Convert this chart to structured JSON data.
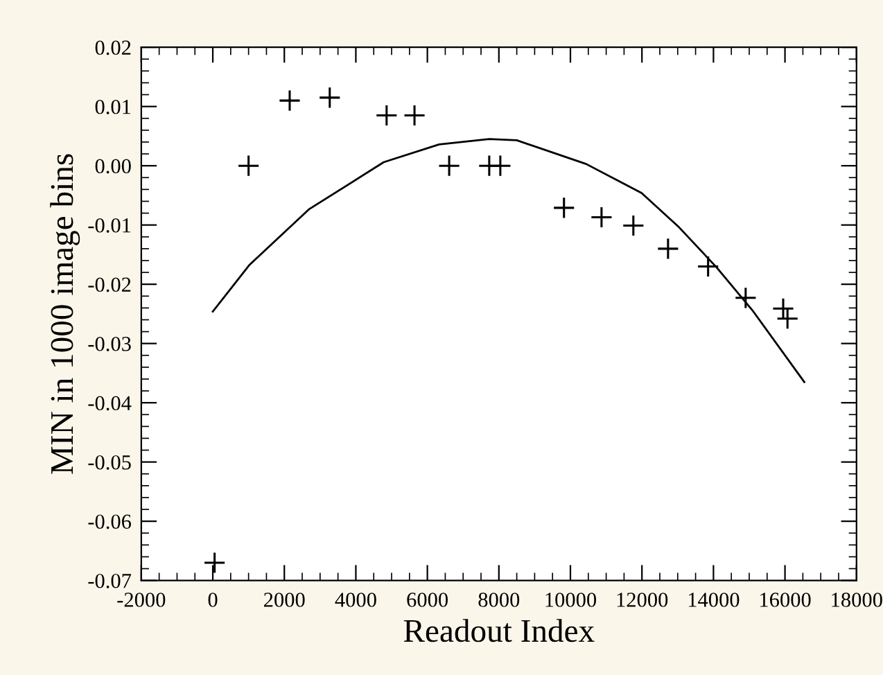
{
  "chart_data": {
    "type": "scatter",
    "xlabel": "Readout Index",
    "ylabel": "MIN in 1000 image bins",
    "xlim": [
      -2000,
      18000
    ],
    "xticks": [
      -2000,
      0,
      2000,
      4000,
      6000,
      8000,
      10000,
      12000,
      14000,
      16000,
      18000
    ],
    "ylim": [
      -0.07,
      0.02
    ],
    "yticks": [
      -0.07,
      -0.06,
      -0.05,
      -0.04,
      -0.03,
      -0.02,
      -0.01,
      {
        "value": 0,
        "label": "0.00"
      },
      0.01,
      0.02
    ],
    "grid": false,
    "legend": false,
    "series": [
      {
        "marker": "cross",
        "color": "#000000",
        "x": [
          50,
          1000,
          2150,
          3270,
          4860,
          5640,
          6610,
          7730,
          8040,
          9820,
          10870,
          11760,
          12730,
          13850,
          14900,
          15950,
          16070
        ],
        "values": [
          -0.067,
          0.0,
          0.011,
          0.0115,
          0.0085,
          0.0085,
          0.0,
          0.0,
          0.0,
          -0.0071,
          -0.0087,
          -0.0101,
          -0.014,
          -0.017,
          -0.0223,
          -0.0241,
          -0.0258
        ]
      },
      {
        "type": "line",
        "marker": "none",
        "line_style": "solid",
        "color": "#000000",
        "x": [
          0,
          1030,
          2700,
          4780,
          6330,
          7730,
          8500,
          10440,
          11990,
          13040,
          14080,
          15090,
          16540
        ],
        "values": [
          -0.0246,
          -0.0167,
          -0.0073,
          0.0006,
          0.0036,
          0.0045,
          0.0043,
          0.0003,
          -0.0046,
          -0.0104,
          -0.0171,
          -0.0244,
          -0.0365
        ]
      }
    ]
  }
}
